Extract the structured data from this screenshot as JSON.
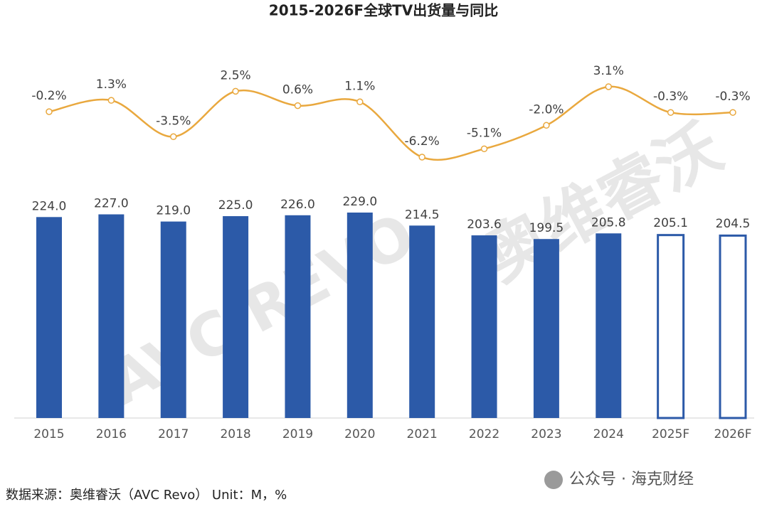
{
  "chart_data": {
    "type": "bar",
    "title": "2015-2026F全球TV出货量与同比",
    "categories": [
      "2015",
      "2016",
      "2017",
      "2018",
      "2019",
      "2020",
      "2021",
      "2022",
      "2023",
      "2024",
      "2025F",
      "2026F"
    ],
    "series": [
      {
        "type": "bar",
        "color": "#2c5aa8",
        "values": [
          224.0,
          227.0,
          219.0,
          225.0,
          226.0,
          229.0,
          214.5,
          203.6,
          199.5,
          205.8,
          205.1,
          204.5
        ],
        "value_labels": [
          "224.0",
          "227.0",
          "219.0",
          "225.0",
          "226.0",
          "229.0",
          "214.5",
          "203.6",
          "199.5",
          "205.8",
          "205.1",
          "204.5"
        ],
        "outline_only": [
          false,
          false,
          false,
          false,
          false,
          false,
          false,
          false,
          false,
          false,
          true,
          true
        ]
      },
      {
        "type": "line",
        "axis": "y2",
        "color": "#e9a83e",
        "values": [
          -0.2,
          1.3,
          -3.5,
          2.5,
          0.6,
          1.1,
          -6.2,
          -5.1,
          -2.0,
          3.1,
          -0.3,
          -0.3
        ],
        "value_labels": [
          "-0.2%",
          "1.3%",
          "-3.5%",
          "2.5%",
          "0.6%",
          "1.1%",
          "-6.2%",
          "-5.1%",
          "-2.0%",
          "3.1%",
          "-0.3%",
          "-0.3%"
        ]
      }
    ]
  },
  "watermark": [
    "AVC REVO",
    "奥维睿沃"
  ],
  "credit": "公众号 · 海克财经",
  "source": "数据来源：奥维睿沃（AVC Revo） Unit：M，%"
}
